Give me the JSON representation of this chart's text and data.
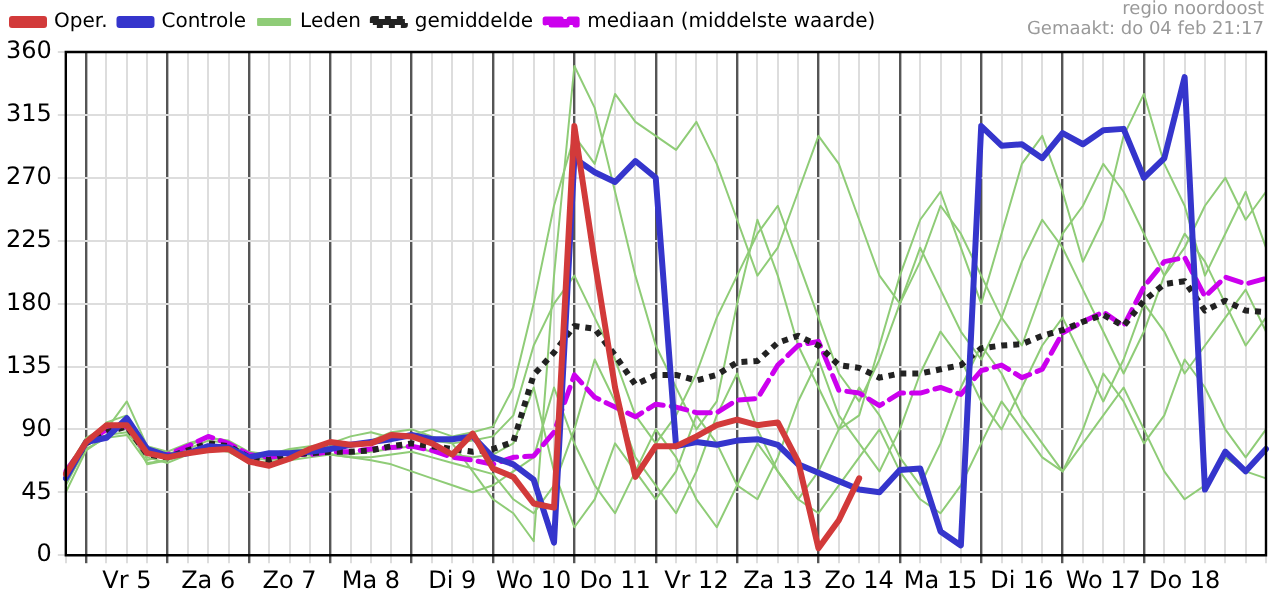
{
  "chart_data": {
    "type": "line",
    "categories": [
      null,
      null,
      null,
      "Vr 5",
      null,
      null,
      null,
      "Za 6",
      null,
      null,
      null,
      "Zo 7",
      null,
      null,
      null,
      "Ma 8",
      null,
      null,
      null,
      "Di 9",
      null,
      null,
      null,
      "Wo 10",
      null,
      null,
      null,
      "Do 11",
      null,
      null,
      null,
      "Vr 12",
      null,
      null,
      null,
      "Za 13",
      null,
      null,
      null,
      "Zo 14",
      null,
      null,
      null,
      "Ma 15",
      null,
      null,
      null,
      "Di 16",
      null,
      null,
      null,
      "Wo 17",
      null,
      null,
      null,
      "Do 18",
      null,
      null,
      null,
      null
    ],
    "ylim": [
      0,
      360
    ],
    "yticks": [
      0,
      45,
      90,
      135,
      180,
      225,
      270,
      315,
      360
    ],
    "grid": true,
    "legend": "top left",
    "marker": "none",
    "annotations": [
      "regio noordoost",
      "Gemaakt: do 04 feb 21:17"
    ],
    "series": [
      {
        "name": "Oper.",
        "color": "#d23a3a",
        "values": [
          58,
          81,
          93,
          93,
          73,
          70,
          73,
          75,
          76,
          67,
          64,
          69,
          76,
          81,
          79,
          80,
          86,
          85,
          80,
          72,
          87,
          62,
          56,
          37,
          34,
          307,
          210,
          120,
          56,
          78,
          78,
          85,
          93,
          97,
          93,
          95,
          67,
          5,
          25,
          55,
          null,
          null,
          null,
          null,
          null,
          null,
          null,
          null,
          null,
          null,
          null,
          null,
          null,
          null,
          null,
          null,
          null,
          null,
          null,
          null
        ]
      },
      {
        "name": "Controle",
        "color": "#3535cc",
        "values": [
          55,
          81,
          84,
          98,
          76,
          71,
          73,
          78,
          77,
          70,
          73,
          73,
          74,
          76,
          79,
          81,
          83,
          86,
          83,
          83,
          85,
          70,
          65,
          54,
          9,
          284,
          274,
          267,
          282,
          270,
          78,
          81,
          79,
          82,
          83,
          79,
          65,
          59,
          53,
          47,
          45,
          61,
          62,
          17,
          7,
          307,
          293,
          294,
          284,
          302,
          294,
          304,
          305,
          270,
          284,
          342,
          47,
          74,
          60,
          76
        ]
      },
      {
        "name": "Leden",
        "color": "#8fcc77",
        "values": [
          50,
          78,
          95,
          100,
          68,
          72,
          78,
          85,
          80,
          72,
          70,
          75,
          76,
          78,
          80,
          82,
          88,
          90,
          85,
          80,
          60,
          40,
          30,
          10,
          200,
          350,
          320,
          260,
          200,
          150,
          120,
          90,
          110,
          180,
          240,
          200,
          150,
          120,
          90,
          100,
          150,
          200,
          240,
          260,
          220,
          180,
          230,
          280,
          300,
          260,
          210,
          240,
          300,
          330,
          280,
          250,
          200,
          230,
          260,
          220
        ]
      },
      {
        "color": "#8fcc77",
        "values": [
          45,
          75,
          85,
          95,
          65,
          68,
          72,
          78,
          76,
          68,
          66,
          70,
          72,
          72,
          70,
          68,
          65,
          60,
          55,
          50,
          45,
          50,
          60,
          70,
          120,
          80,
          50,
          30,
          60,
          90,
          70,
          40,
          20,
          50,
          80,
          60,
          40,
          30,
          50,
          70,
          90,
          60,
          40,
          30,
          50,
          80,
          110,
          90,
          70,
          60,
          80,
          100,
          120,
          90,
          60,
          40,
          50,
          70,
          60,
          55
        ]
      },
      {
        "color": "#8fcc77",
        "values": [
          62,
          82,
          90,
          110,
          78,
          74,
          80,
          84,
          82,
          74,
          72,
          76,
          78,
          80,
          85,
          88,
          84,
          86,
          90,
          85,
          88,
          92,
          120,
          180,
          250,
          300,
          280,
          330,
          310,
          300,
          290,
          310,
          280,
          240,
          200,
          220,
          260,
          300,
          280,
          240,
          200,
          180,
          210,
          250,
          230,
          200,
          170,
          150,
          190,
          230,
          250,
          280,
          260,
          230,
          200,
          220,
          250,
          270,
          240,
          260
        ]
      },
      {
        "color": "#8fcc77",
        "values": [
          55,
          80,
          86,
          88,
          70,
          66,
          72,
          76,
          74,
          66,
          64,
          68,
          70,
          72,
          72,
          74,
          76,
          78,
          74,
          72,
          70,
          72,
          80,
          120,
          60,
          20,
          40,
          80,
          60,
          40,
          60,
          100,
          80,
          50,
          40,
          70,
          110,
          140,
          100,
          80,
          60,
          90,
          130,
          160,
          140,
          110,
          90,
          120,
          150,
          170,
          140,
          110,
          140,
          180,
          160,
          130,
          150,
          170,
          190,
          160
        ]
      },
      {
        "color": "#8fcc77",
        "values": [
          60,
          84,
          92,
          90,
          74,
          72,
          76,
          82,
          80,
          72,
          70,
          74,
          74,
          76,
          78,
          80,
          82,
          85,
          82,
          80,
          82,
          85,
          100,
          150,
          180,
          200,
          170,
          140,
          100,
          80,
          100,
          130,
          170,
          200,
          230,
          250,
          210,
          170,
          130,
          110,
          140,
          180,
          220,
          190,
          160,
          140,
          170,
          210,
          240,
          220,
          190,
          160,
          130,
          160,
          200,
          230,
          210,
          180,
          150,
          170
        ]
      },
      {
        "color": "#8fcc77",
        "values": [
          52,
          76,
          84,
          86,
          66,
          68,
          74,
          78,
          76,
          70,
          68,
          70,
          72,
          72,
          70,
          70,
          72,
          74,
          70,
          66,
          62,
          58,
          40,
          30,
          50,
          90,
          140,
          110,
          70,
          50,
          30,
          60,
          100,
          130,
          90,
          60,
          40,
          60,
          90,
          120,
          100,
          70,
          50,
          80,
          120,
          150,
          130,
          100,
          80,
          60,
          90,
          130,
          110,
          80,
          100,
          140,
          120,
          90,
          70,
          90
        ]
      },
      {
        "name": "gemiddelde",
        "color": "#222222",
        "line_style": "dotted",
        "values": [
          58,
          80,
          88,
          92,
          72,
          70,
          75,
          80,
          78,
          70,
          68,
          72,
          73,
          74,
          74,
          75,
          78,
          80,
          78,
          76,
          74,
          76,
          81,
          129,
          145,
          164,
          162,
          143,
          122,
          129,
          129,
          125,
          129,
          138,
          139,
          152,
          157,
          150,
          136,
          134,
          127,
          130,
          130,
          133,
          136,
          148,
          150,
          151,
          157,
          161,
          167,
          172,
          164,
          182,
          194,
          196,
          175,
          182,
          175,
          174
        ]
      },
      {
        "name": "mediaan (middelste waarde)",
        "color": "#cc00ee",
        "line_style": "dashed",
        "values": [
          60,
          80,
          90,
          92,
          72,
          72,
          78,
          85,
          80,
          72,
          70,
          72,
          72,
          74,
          74,
          76,
          77,
          78,
          75,
          70,
          68,
          65,
          70,
          71,
          88,
          129,
          113,
          106,
          99,
          108,
          106,
          102,
          102,
          111,
          112,
          136,
          150,
          153,
          118,
          116,
          107,
          116,
          116,
          120,
          115,
          132,
          136,
          127,
          133,
          159,
          167,
          174,
          164,
          192,
          210,
          213,
          185,
          199,
          194,
          198
        ]
      }
    ]
  }
}
